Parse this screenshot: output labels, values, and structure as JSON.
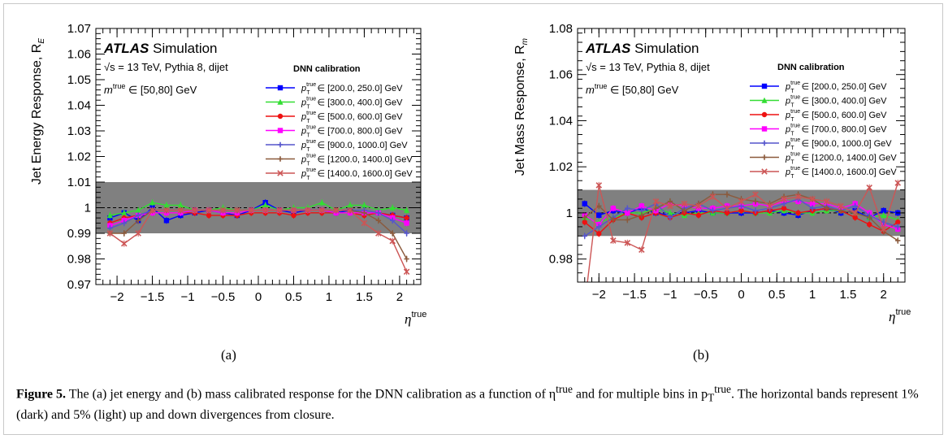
{
  "figure": {
    "sublabel_a": "(a)",
    "sublabel_b": "(b)",
    "caption": {
      "label": "Figure 5.",
      "text": "The (a) jet energy and (b) mass calibrated response for the DNN calibration as a function of η",
      "sup1": "true",
      "text2": " and for multiple bins in p",
      "sub_T": "T",
      "sup2": "true",
      "text3": ". The horizontal bands represent 1% (dark) and 5% (light) up and down divergences from closure."
    }
  },
  "colors": {
    "band_dark": "#808080",
    "series": [
      "#0000ff",
      "#33dd33",
      "#ee1111",
      "#ff00ff",
      "#5555cc",
      "#8b5a3c",
      "#cc5555"
    ]
  },
  "chart_data": [
    {
      "type": "line",
      "id": "a",
      "ylabel": "Jet Energy Response, R",
      "ylabel_sub": "E",
      "xlabel": "η",
      "xlabel_sup": "true",
      "atlas": "ATLAS",
      "atlas_rest": "Simulation",
      "energy_line": "√s = 13 TeV, Pythia 8, dijet",
      "mass_range": "m",
      "mass_range_sup": "true",
      "mass_range_rest": "∈ [50,80] GeV",
      "legend_title": "DNN calibration",
      "ylim": [
        0.97,
        1.07
      ],
      "xlim": [
        -2.3,
        2.3
      ],
      "yticks": [
        "0.97",
        "0.98",
        "0.99",
        "1",
        "1.01",
        "1.02",
        "1.03",
        "1.04",
        "1.05",
        "1.06",
        "1.07"
      ],
      "ytick_values": [
        0.97,
        0.98,
        0.99,
        1.0,
        1.01,
        1.02,
        1.03,
        1.04,
        1.05,
        1.06,
        1.07
      ],
      "xticks": [
        "−2",
        "−1.5",
        "−1",
        "−0.5",
        "0",
        "0.5",
        "1",
        "1.5",
        "2"
      ],
      "xtick_values": [
        -2,
        -1.5,
        -1,
        -0.5,
        0,
        0.5,
        1,
        1.5,
        2
      ],
      "band": [
        0.99,
        1.01
      ],
      "x": [
        -2.1,
        -1.9,
        -1.7,
        -1.5,
        -1.3,
        -1.1,
        -0.9,
        -0.7,
        -0.5,
        -0.3,
        -0.1,
        0.1,
        0.3,
        0.5,
        0.7,
        0.9,
        1.1,
        1.3,
        1.5,
        1.7,
        1.9,
        2.1
      ],
      "series": [
        {
          "name": "[200.0, 250.0] GeV",
          "marker": "square",
          "values": [
            0.996,
            0.998,
            0.995,
            1.0,
            0.995,
            0.997,
            0.998,
            0.999,
            0.998,
            0.997,
            0.999,
            1.002,
            0.999,
            0.998,
            0.999,
            0.999,
            0.998,
            0.999,
            0.998,
            0.998,
            0.997,
            0.996
          ]
        },
        {
          "name": "[300.0, 400.0] GeV",
          "marker": "triangle",
          "values": [
            0.997,
            0.998,
            0.999,
            1.002,
            1.001,
            1.001,
            0.999,
            0.999,
            1.0,
            0.999,
            0.999,
            1.001,
            0.999,
            1.0,
            1.0,
            1.002,
            0.999,
            1.001,
            1.001,
            0.999,
            1.0,
            0.999
          ]
        },
        {
          "name": "[500.0, 600.0] GeV",
          "marker": "circle",
          "values": [
            0.994,
            0.996,
            0.997,
            0.998,
            0.998,
            0.998,
            0.998,
            0.997,
            0.997,
            0.997,
            0.998,
            0.998,
            0.998,
            0.997,
            0.998,
            0.998,
            0.998,
            0.998,
            0.997,
            0.998,
            0.997,
            0.996
          ]
        },
        {
          "name": "[700.0, 800.0] GeV",
          "marker": "square",
          "values": [
            0.993,
            0.995,
            0.997,
            0.998,
            0.998,
            0.998,
            0.999,
            0.999,
            0.998,
            0.998,
            0.999,
            0.999,
            0.999,
            0.999,
            0.999,
            0.999,
            0.998,
            0.998,
            0.998,
            0.998,
            0.996,
            0.994
          ]
        },
        {
          "name": "[900.0, 1000.0] GeV",
          "marker": "plus",
          "values": [
            0.992,
            0.994,
            0.997,
            0.999,
            0.999,
            0.999,
            0.999,
            0.999,
            0.999,
            0.999,
            0.999,
            0.999,
            0.999,
            0.999,
            0.999,
            0.999,
            0.999,
            0.999,
            0.999,
            0.998,
            0.995,
            0.99
          ]
        },
        {
          "name": "[1200.0, 1400.0] GeV",
          "marker": "plus",
          "values": [
            0.99,
            0.99,
            0.995,
            0.999,
            0.999,
            0.999,
            0.999,
            0.999,
            0.999,
            0.999,
            0.999,
            0.999,
            0.999,
            0.999,
            0.999,
            0.999,
            0.999,
            0.999,
            0.998,
            0.995,
            0.99,
            0.98
          ]
        },
        {
          "name": "[1400.0, 1600.0] GeV",
          "marker": "cross",
          "values": [
            0.99,
            0.986,
            0.99,
            0.999,
            0.999,
            0.999,
            0.999,
            0.999,
            0.999,
            0.999,
            0.999,
            0.999,
            0.999,
            0.999,
            0.999,
            0.999,
            0.999,
            0.999,
            0.994,
            0.99,
            0.987,
            0.975
          ]
        }
      ],
      "legend_prefix": "p",
      "legend_sup": "true",
      "legend_sub": "T",
      "legend_in": "∈"
    },
    {
      "type": "line",
      "id": "b",
      "ylabel": "Jet Mass Response, R",
      "ylabel_sub": "m",
      "xlabel": "η",
      "xlabel_sup": "true",
      "atlas": "ATLAS",
      "atlas_rest": "Simulation",
      "energy_line": "√s = 13 TeV, Pythia 8, dijet",
      "mass_range": "m",
      "mass_range_sup": "true",
      "mass_range_rest": "∈ [50,80] GeV",
      "legend_title": "DNN calibration",
      "ylim": [
        0.97,
        1.08
      ],
      "xlim": [
        -2.3,
        2.3
      ],
      "yticks": [
        "0.98",
        "1",
        "1.02",
        "1.04",
        "1.06",
        "1.08"
      ],
      "ytick_values": [
        0.98,
        1.0,
        1.02,
        1.04,
        1.06,
        1.08
      ],
      "xticks": [
        "−2",
        "−1.5",
        "−1",
        "−0.5",
        "0",
        "0.5",
        "1",
        "1.5",
        "2"
      ],
      "xtick_values": [
        -2,
        -1.5,
        -1,
        -0.5,
        0,
        0.5,
        1,
        1.5,
        2
      ],
      "band": [
        0.99,
        1.01
      ],
      "x": [
        -2.2,
        -2.0,
        -1.8,
        -1.6,
        -1.4,
        -1.2,
        -1.0,
        -0.8,
        -0.6,
        -0.4,
        -0.2,
        0.0,
        0.2,
        0.4,
        0.6,
        0.8,
        1.0,
        1.2,
        1.4,
        1.6,
        1.8,
        2.0,
        2.2
      ],
      "series": [
        {
          "name": "[200.0, 250.0] GeV",
          "marker": "square",
          "values": [
            1.004,
            0.999,
            1.001,
            1.0,
            1.002,
            1.0,
            0.999,
            1.0,
            1.001,
            1.0,
            1.0,
            1.0,
            1.0,
            1.001,
            1.0,
            0.999,
            1.001,
            1.002,
            1.0,
            1.001,
            0.998,
            1.001,
            1.0
          ]
        },
        {
          "name": "[300.0, 400.0] GeV",
          "marker": "triangle",
          "values": [
            0.998,
            0.996,
            0.998,
            1.0,
            1.0,
            1.002,
            1.0,
            0.999,
            1.0,
            1.0,
            1.0,
            1.001,
            1.0,
            1.0,
            1.001,
            1.0,
            1.0,
            1.001,
            1.001,
            1.0,
            0.998,
            0.999,
            0.997
          ]
        },
        {
          "name": "[500.0, 600.0] GeV",
          "marker": "circle",
          "values": [
            0.996,
            0.991,
            0.997,
            1.0,
            0.998,
            1.0,
            0.998,
            1.0,
            0.999,
            1.001,
            1.0,
            1.001,
            1.0,
            1.001,
            1.002,
            1.0,
            1.001,
            1.002,
            1.001,
            0.998,
            0.995,
            0.992,
            0.996
          ]
        },
        {
          "name": "[700.0, 800.0] GeV",
          "marker": "square",
          "values": [
            0.999,
            0.995,
            1.002,
            1.0,
            1.003,
            1.001,
            1.004,
            1.003,
            1.002,
            1.002,
            1.003,
            1.003,
            1.004,
            1.003,
            1.005,
            1.005,
            1.004,
            1.004,
            1.002,
            1.004,
            1.0,
            0.995,
            0.993
          ]
        },
        {
          "name": "[900.0, 1000.0] GeV",
          "marker": "plus",
          "values": [
            0.99,
            0.994,
            0.998,
            1.002,
            1.001,
            1.004,
            0.998,
            1.002,
            1.004,
            1.001,
            1.002,
            1.003,
            1.001,
            1.002,
            1.004,
            1.006,
            1.002,
            1.003,
            1.001,
            1.003,
            0.999,
            0.996,
            0.994
          ]
        },
        {
          "name": "[1200.0, 1400.0] GeV",
          "marker": "plus",
          "values": [
            0.998,
            1.003,
            0.997,
            0.997,
            0.999,
            1.002,
            1.005,
            1.001,
            1.004,
            1.008,
            1.008,
            1.006,
            1.005,
            1.004,
            1.007,
            1.008,
            1.006,
            1.002,
            1.001,
            1.0,
            0.998,
            0.992,
            0.988
          ]
        },
        {
          "name": "[1400.0, 1600.0] GeV",
          "marker": "cross",
          "values": [
            0.96,
            1.012,
            0.988,
            0.987,
            0.984,
            1.005,
            1.003,
            1.004,
            1.003,
            1.007,
            1.002,
            1.005,
            1.008,
            1.003,
            1.006,
            1.007,
            1.006,
            1.005,
            1.003,
            1.0,
            1.011,
            0.993,
            1.013
          ]
        }
      ],
      "legend_prefix": "p",
      "legend_sup": "true",
      "legend_sub": "T",
      "legend_in": "∈"
    }
  ]
}
